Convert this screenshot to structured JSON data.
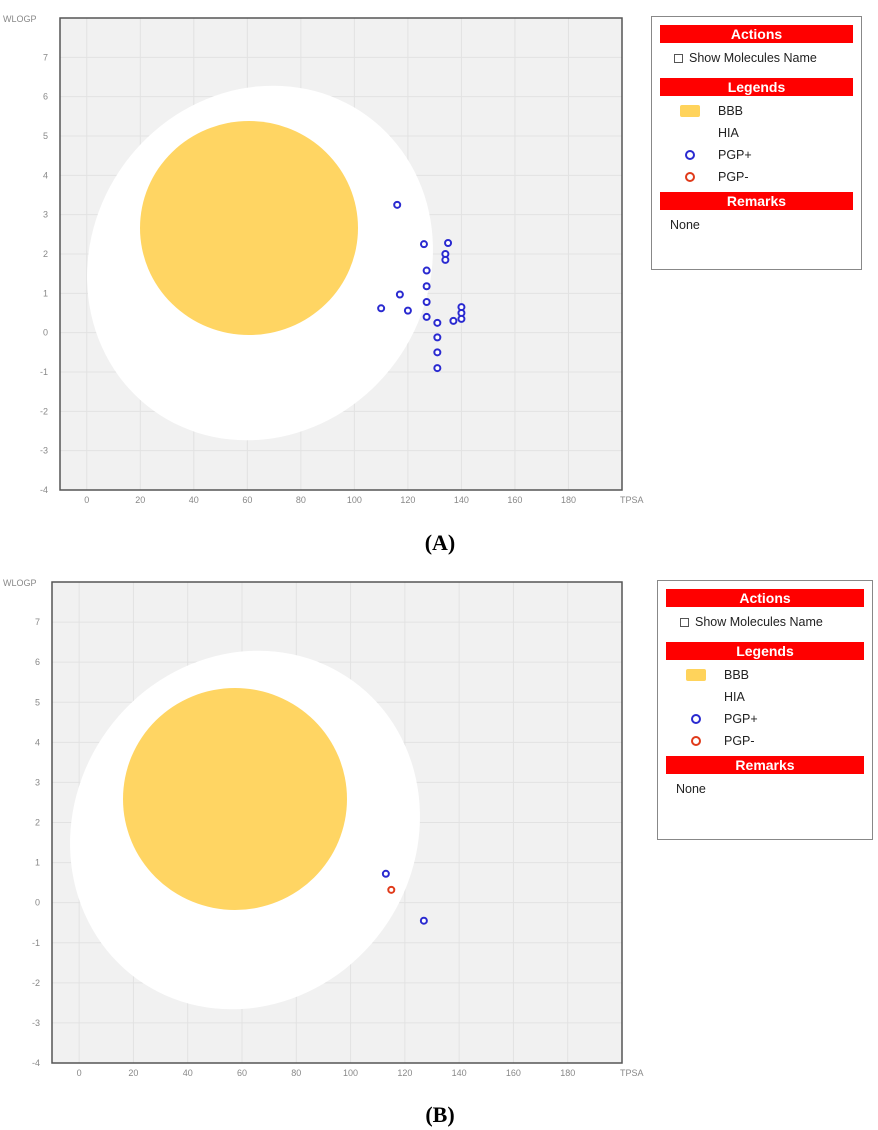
{
  "charts": [
    {
      "caption": "(A)",
      "chart_data": {
        "type": "scatter",
        "xlabel": "TPSA",
        "ylabel": "WLOGP",
        "xlim": [
          -10,
          200
        ],
        "ylim": [
          -4,
          8
        ],
        "xticks": [
          0,
          20,
          40,
          60,
          80,
          100,
          120,
          140,
          160,
          180
        ],
        "yticks": [
          -4,
          -3,
          -2,
          -1,
          0,
          1,
          2,
          3,
          4,
          5,
          6,
          7
        ],
        "grid": true,
        "regions": [
          {
            "name": "HIA",
            "type": "ellipse",
            "color": "#ffffff"
          },
          {
            "name": "BBB",
            "type": "ellipse",
            "color": "#ffd35b"
          }
        ],
        "series": [
          {
            "name": "PGP+",
            "color": "#2a2ad0",
            "points": [
              [
                116,
                3.25
              ],
              [
                126,
                2.25
              ],
              [
                135,
                2.28
              ],
              [
                134,
                2.0
              ],
              [
                134,
                1.85
              ],
              [
                127,
                1.58
              ],
              [
                127,
                1.18
              ],
              [
                117,
                0.97
              ],
              [
                127,
                0.78
              ],
              [
                110,
                0.62
              ],
              [
                120,
                0.56
              ],
              [
                140,
                0.65
              ],
              [
                140,
                0.5
              ],
              [
                140,
                0.35
              ],
              [
                137,
                0.3
              ],
              [
                127,
                0.4
              ],
              [
                131,
                0.25
              ],
              [
                131,
                -0.12
              ],
              [
                131,
                -0.5
              ],
              [
                131,
                -0.9
              ]
            ]
          },
          {
            "name": "PGP-",
            "color": "#e03a1a",
            "points": []
          }
        ]
      },
      "side": {
        "actions_title": "Actions",
        "show_names_label": "Show Molecules Name",
        "legends_title": "Legends",
        "legend_items": [
          {
            "label": "BBB",
            "kind": "rect",
            "color": "#ffd35b"
          },
          {
            "label": "HIA",
            "kind": "hia",
            "color": "#ffffff"
          },
          {
            "label": "PGP+",
            "kind": "ring",
            "color": "#2a2ad0"
          },
          {
            "label": "PGP-",
            "kind": "ring",
            "color": "#e03a1a"
          }
        ],
        "remarks_title": "Remarks",
        "remarks_text": "None"
      }
    },
    {
      "caption": "(B)",
      "chart_data": {
        "type": "scatter",
        "xlabel": "TPSA",
        "ylabel": "WLOGP",
        "xlim": [
          -10,
          200
        ],
        "ylim": [
          -4,
          8
        ],
        "xticks": [
          0,
          20,
          40,
          60,
          80,
          100,
          120,
          140,
          160,
          180
        ],
        "yticks": [
          -4,
          -3,
          -2,
          -1,
          0,
          1,
          2,
          3,
          4,
          5,
          6,
          7
        ],
        "grid": true,
        "regions": [
          {
            "name": "HIA",
            "type": "ellipse",
            "color": "#ffffff"
          },
          {
            "name": "BBB",
            "type": "ellipse",
            "color": "#ffd35b"
          }
        ],
        "series": [
          {
            "name": "PGP+",
            "color": "#2a2ad0",
            "points": [
              [
                113,
                0.72
              ],
              [
                127,
                -0.45
              ]
            ]
          },
          {
            "name": "PGP-",
            "color": "#e03a1a",
            "points": [
              [
                115,
                0.32
              ]
            ]
          }
        ]
      },
      "side": {
        "actions_title": "Actions",
        "show_names_label": "Show Molecules Name",
        "legends_title": "Legends",
        "legend_items": [
          {
            "label": "BBB",
            "kind": "rect",
            "color": "#ffd35b"
          },
          {
            "label": "HIA",
            "kind": "hia",
            "color": "#ffffff"
          },
          {
            "label": "PGP+",
            "kind": "ring",
            "color": "#2a2ad0"
          },
          {
            "label": "PGP-",
            "kind": "ring",
            "color": "#e03a1a"
          }
        ],
        "remarks_title": "Remarks",
        "remarks_text": "None"
      }
    }
  ]
}
